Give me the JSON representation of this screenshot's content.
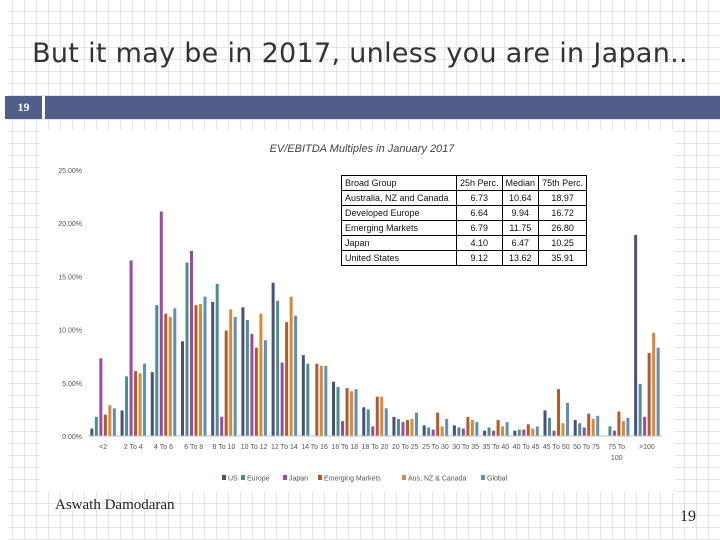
{
  "slide": {
    "title": "But it may be in 2017, unless you are in Japan..",
    "number": "19",
    "author": "Aswath Damodaran",
    "page": "19",
    "bar_color": "#515e8a"
  },
  "table": {
    "headers": [
      "Broad Group",
      "25h Perc.",
      "Median",
      "75th Perc."
    ],
    "rows": [
      [
        "Australia, NZ and Canada",
        "6.73",
        "10.64",
        "18.97"
      ],
      [
        "Developed Europe",
        "6.64",
        "9.94",
        "16.72"
      ],
      [
        "Emerging Markets",
        "6.79",
        "11.75",
        "26.80"
      ],
      [
        "Japan",
        "4.10",
        "6.47",
        "10.25"
      ],
      [
        "United States",
        "9.12",
        "13.62",
        "35.91"
      ]
    ]
  },
  "chart_data": {
    "type": "bar",
    "title": "EV/EBITDA Multiples in January 2017",
    "xlabel": "",
    "ylabel": "",
    "ylim": [
      0,
      25
    ],
    "yticks": [
      "0.00%",
      "5.00%",
      "10.00%",
      "15.00%",
      "20.00%",
      "25.00%"
    ],
    "grid": false,
    "legend_position": "bottom",
    "categories": [
      "<2",
      "2 To 4",
      "4 To 6",
      "6 To 8",
      "8 To 10",
      "10 To 12",
      "12 To 14",
      "14 To 16",
      "16 To 18",
      "18 To 20",
      "20 To 25",
      "25 To 30",
      "30 To 35",
      "35 To 40",
      "40 To 45",
      "45 To 50",
      "50 To 75",
      "75 To 100",
      ">100"
    ],
    "series": [
      {
        "name": "US",
        "color": "#4a5178",
        "values": [
          0.7,
          2.4,
          6.0,
          8.9,
          12.6,
          12.1,
          14.4,
          7.6,
          5.1,
          2.7,
          1.8,
          1.0,
          1.0,
          0.5,
          0.5,
          2.4,
          1.5,
          0.0,
          18.9
        ]
      },
      {
        "name": "Europe",
        "color": "#4c8f8a",
        "values": [
          1.8,
          5.6,
          12.3,
          16.3,
          14.3,
          10.9,
          12.7,
          6.8,
          4.6,
          2.5,
          1.6,
          0.8,
          0.8,
          0.8,
          0.6,
          1.7,
          1.2,
          0.9,
          4.9
        ]
      },
      {
        "name": "Japan",
        "color": "#9b4aa3",
        "values": [
          7.3,
          16.5,
          21.1,
          17.4,
          1.8,
          9.6,
          6.9,
          0.0,
          1.4,
          0.9,
          1.3,
          0.6,
          0.7,
          0.5,
          0.6,
          0.5,
          0.8,
          0.5,
          1.8
        ]
      },
      {
        "name": "Emerging Markets",
        "color": "#b35a2a",
        "values": [
          2.0,
          6.1,
          11.5,
          12.3,
          9.9,
          8.3,
          10.7,
          6.8,
          4.5,
          3.7,
          1.5,
          2.2,
          1.8,
          1.5,
          1.1,
          4.4,
          2.1,
          2.3,
          7.8
        ]
      },
      {
        "name": "Aus, NZ & Canada",
        "color": "#d88a3a",
        "values": [
          2.9,
          5.9,
          11.2,
          12.4,
          11.9,
          11.5,
          13.1,
          6.6,
          4.2,
          3.7,
          1.6,
          0.9,
          1.5,
          0.9,
          0.7,
          1.2,
          1.6,
          1.4,
          9.7
        ]
      },
      {
        "name": "Global",
        "color": "#5d8fb8",
        "values": [
          2.6,
          6.8,
          12.0,
          13.1,
          11.2,
          9.0,
          11.3,
          6.6,
          4.4,
          2.6,
          2.2,
          1.6,
          1.3,
          1.3,
          0.9,
          3.1,
          1.9,
          1.7,
          8.3
        ]
      }
    ]
  }
}
